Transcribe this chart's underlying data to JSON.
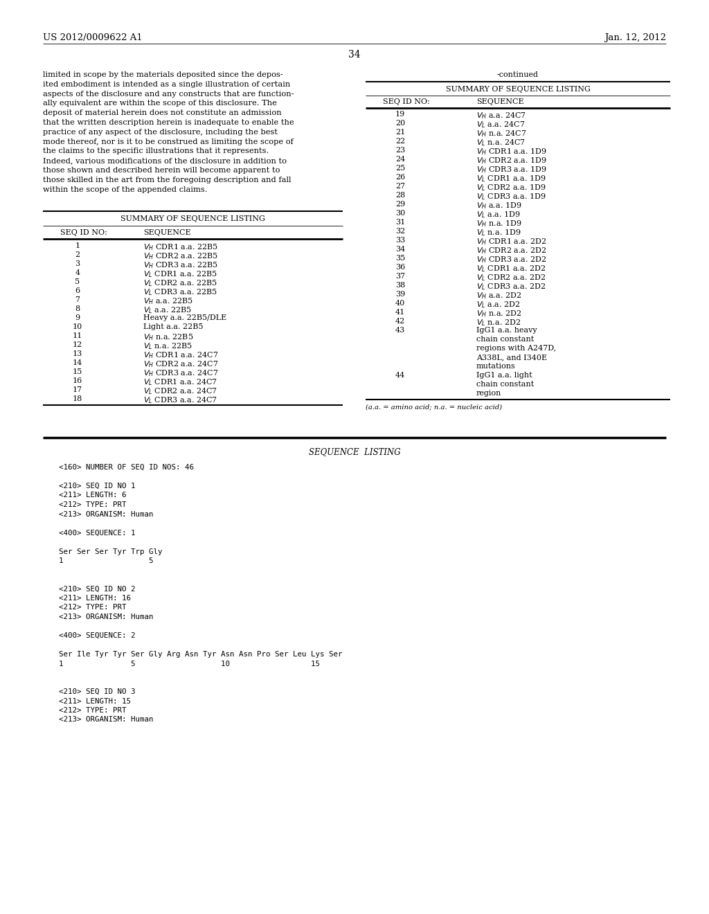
{
  "bg_color": "#ffffff",
  "header_left": "US 2012/0009622 A1",
  "header_right": "Jan. 12, 2012",
  "page_number": "34",
  "left_paragraph_lines": [
    "limited in scope by the materials deposited since the depos-",
    "ited embodiment is intended as a single illustration of certain",
    "aspects of the disclosure and any constructs that are function-",
    "ally equivalent are within the scope of this disclosure. The",
    "deposit of material herein does not constitute an admission",
    "that the written description herein is inadequate to enable the",
    "practice of any aspect of the disclosure, including the best",
    "mode thereof, nor is it to be construed as limiting the scope of",
    "the claims to the specific illustrations that it represents.",
    "Indeed, various modifications of the disclosure in addition to",
    "those shown and described herein will become apparent to",
    "those skilled in the art from the foregoing description and fall",
    "within the scope of the appended claims."
  ],
  "table_title": "SUMMARY OF SEQUENCE LISTING",
  "table_col1": "SEQ ID NO:",
  "table_col2": "SEQUENCE",
  "left_table_rows": [
    [
      "1",
      "V_H CDR1 a.a. 22B5",
      "H",
      "L"
    ],
    [
      "2",
      "V_H CDR2 a.a. 22B5",
      "H",
      "L"
    ],
    [
      "3",
      "V_H CDR3 a.a. 22B5",
      "H",
      "L"
    ],
    [
      "4",
      "V_L CDR1 a.a. 22B5",
      "L",
      "L"
    ],
    [
      "5",
      "V_L CDR2 a.a. 22B5",
      "L",
      "L"
    ],
    [
      "6",
      "V_L CDR3 a.a. 22B5",
      "L",
      "L"
    ],
    [
      "7",
      "V_H a.a. 22B5",
      "H",
      ""
    ],
    [
      "8",
      "V_L a.a. 22B5",
      "L",
      ""
    ],
    [
      "9",
      "Heavy a.a. 22B5/DLE",
      "",
      ""
    ],
    [
      "10",
      "Light a.a. 22B5",
      "",
      ""
    ],
    [
      "11",
      "V_H n.a. 22B5",
      "H",
      ""
    ],
    [
      "12",
      "V_L n.a. 22B5",
      "L",
      ""
    ],
    [
      "13",
      "V_H CDR1 a.a. 24C7",
      "H",
      "L"
    ],
    [
      "14",
      "V_H CDR2 a.a. 24C7",
      "H",
      "L"
    ],
    [
      "15",
      "V_H CDR3 a.a. 24C7",
      "H",
      "L"
    ],
    [
      "16",
      "V_L CDR1 a.a. 24C7",
      "L",
      "L"
    ],
    [
      "17",
      "V_L CDR2 a.a. 24C7",
      "L",
      "L"
    ],
    [
      "18",
      "V_L CDR3 a.a. 24C7",
      "L",
      "L"
    ]
  ],
  "right_continued": "-continued",
  "right_table_rows": [
    [
      "19",
      "V_H a.a. 24C7",
      "H",
      ""
    ],
    [
      "20",
      "V_L a.a. 24C7",
      "L",
      ""
    ],
    [
      "21",
      "V_H n.a. 24C7",
      "H",
      ""
    ],
    [
      "22",
      "V_L n.a. 24C7",
      "L",
      ""
    ],
    [
      "23",
      "V_H CDR1 a.a. 1D9",
      "H",
      "L"
    ],
    [
      "24",
      "V_H CDR2 a.a. 1D9",
      "H",
      "L"
    ],
    [
      "25",
      "V_H CDR3 a.a. 1D9",
      "H",
      "L"
    ],
    [
      "26",
      "V_L CDR1 a.a. 1D9",
      "L",
      "L"
    ],
    [
      "27",
      "V_L CDR2 a.a. 1D9",
      "L",
      "L"
    ],
    [
      "28",
      "V_L CDR3 a.a. 1D9",
      "L",
      "L"
    ],
    [
      "29",
      "V_H a.a. 1D9",
      "H",
      ""
    ],
    [
      "30",
      "V_L a.a. 1D9",
      "L",
      ""
    ],
    [
      "31",
      "V_H n.a. 1D9",
      "H",
      ""
    ],
    [
      "32",
      "V_L n.a. 1D9",
      "L",
      ""
    ],
    [
      "33",
      "V_H CDR1 a.a. 2D2",
      "H",
      "L"
    ],
    [
      "34",
      "V_H CDR2 a.a. 2D2",
      "H",
      "L"
    ],
    [
      "35",
      "V_H CDR3 a.a. 2D2",
      "H",
      "L"
    ],
    [
      "36",
      "V_L CDR1 a.a. 2D2",
      "L",
      "L"
    ],
    [
      "37",
      "V_L CDR2 a.a. 2D2",
      "L",
      "L"
    ],
    [
      "38",
      "V_L CDR3 a.a. 2D2",
      "L",
      "L"
    ],
    [
      "39",
      "V_H a.a. 2D2",
      "H",
      ""
    ],
    [
      "40",
      "V_L a.a. 2D2",
      "L",
      ""
    ],
    [
      "41",
      "V_H n.a. 2D2",
      "H",
      ""
    ],
    [
      "42",
      "V_L n.a. 2D2",
      "L",
      ""
    ]
  ],
  "right_table_multirows": [
    {
      "num": "43",
      "lines": [
        "IgG1 a.a. heavy",
        "chain constant",
        "regions with A247D,",
        "A338L, and I340E",
        "mutations"
      ]
    },
    {
      "num": "44",
      "lines": [
        "IgG1 a.a. light",
        "chain constant",
        "region"
      ]
    }
  ],
  "footnote": "(a.a. = amino acid; n.a. = nucleic acid)",
  "seq_listing_title": "SEQUENCE  LISTING",
  "seq_entries": [
    {
      "text": "<160> NUMBER OF SEQ ID NOS: 46",
      "indent": 0
    },
    {
      "text": "",
      "indent": 0
    },
    {
      "text": "<210> SEQ ID NO 1",
      "indent": 0
    },
    {
      "text": "<211> LENGTH: 6",
      "indent": 0
    },
    {
      "text": "<212> TYPE: PRT",
      "indent": 0
    },
    {
      "text": "<213> ORGANISM: Human",
      "indent": 0
    },
    {
      "text": "",
      "indent": 0
    },
    {
      "text": "<400> SEQUENCE: 1",
      "indent": 0
    },
    {
      "text": "",
      "indent": 0
    },
    {
      "text": "Ser Ser Ser Tyr Trp Gly",
      "indent": 0
    },
    {
      "text": "1                   5",
      "indent": 0
    },
    {
      "text": "",
      "indent": 0
    },
    {
      "text": "",
      "indent": 0
    },
    {
      "text": "<210> SEQ ID NO 2",
      "indent": 0
    },
    {
      "text": "<211> LENGTH: 16",
      "indent": 0
    },
    {
      "text": "<212> TYPE: PRT",
      "indent": 0
    },
    {
      "text": "<213> ORGANISM: Human",
      "indent": 0
    },
    {
      "text": "",
      "indent": 0
    },
    {
      "text": "<400> SEQUENCE: 2",
      "indent": 0
    },
    {
      "text": "",
      "indent": 0
    },
    {
      "text": "Ser Ile Tyr Tyr Ser Gly Arg Asn Tyr Asn Asn Pro Ser Leu Lys Ser",
      "indent": 0
    },
    {
      "text": "1               5                   10                  15",
      "indent": 0
    },
    {
      "text": "",
      "indent": 0
    },
    {
      "text": "",
      "indent": 0
    },
    {
      "text": "<210> SEQ ID NO 3",
      "indent": 0
    },
    {
      "text": "<211> LENGTH: 15",
      "indent": 0
    },
    {
      "text": "<212> TYPE: PRT",
      "indent": 0
    },
    {
      "text": "<213> ORGANISM: Human",
      "indent": 0
    }
  ]
}
